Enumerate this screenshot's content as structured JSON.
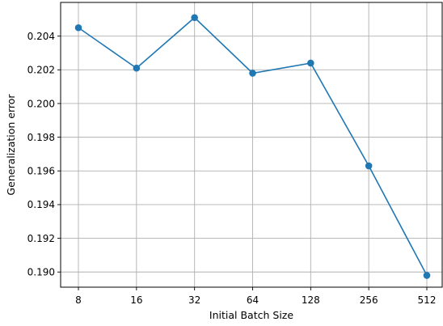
{
  "chart_data": {
    "type": "line",
    "xlabel": "Initial Batch Size",
    "ylabel": "Generalization error",
    "x_scale": "log2",
    "categories": [
      "8",
      "16",
      "32",
      "64",
      "128",
      "256",
      "512"
    ],
    "series": [
      {
        "x": [
          8,
          16,
          32,
          64,
          128,
          256,
          512
        ],
        "values": [
          0.2045,
          0.2021,
          0.2051,
          0.2018,
          0.2024,
          0.1963,
          0.1898
        ],
        "color": "#1f77b4",
        "marker": "circle"
      }
    ],
    "y_ticks": [
      "0.190",
      "0.192",
      "0.194",
      "0.196",
      "0.198",
      "0.200",
      "0.202",
      "0.204"
    ],
    "y_tick_values": [
      0.19,
      0.192,
      0.194,
      0.196,
      0.198,
      0.2,
      0.202,
      0.204
    ],
    "ylim": [
      0.1891,
      0.206
    ],
    "grid": true
  }
}
